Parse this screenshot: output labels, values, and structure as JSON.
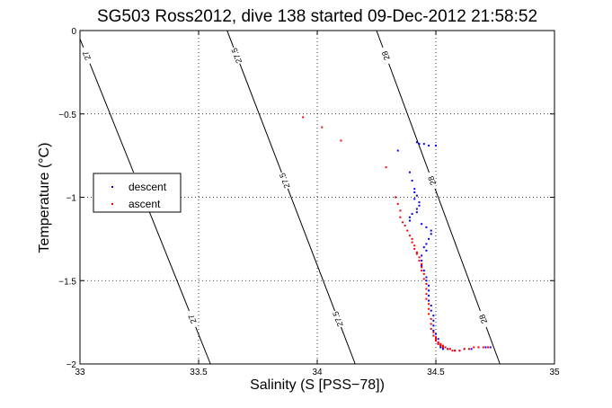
{
  "chart_data": {
    "type": "scatter",
    "title": "SG503 Ross2012, dive 138 started 09-Dec-2012 21:58:52",
    "xlabel": "Salinity (S [PSS−78])",
    "ylabel": "Temperature (°C)",
    "xlim": [
      33,
      35
    ],
    "ylim": [
      -2,
      0
    ],
    "xticks": [
      33,
      33.5,
      34,
      34.5,
      35
    ],
    "xtick_labels": [
      "33",
      "33.5",
      "34",
      "34.5",
      "35"
    ],
    "yticks": [
      0,
      -0.5,
      -1,
      -1.5,
      -2
    ],
    "ytick_labels": [
      "0",
      "−0.5",
      "−1",
      "−1.5",
      "−2"
    ],
    "grid": true,
    "legend_position": "left",
    "density_contours": [
      {
        "value": "27",
        "points": [
          [
            33.0,
            -0.05
          ],
          [
            33.55,
            -2.0
          ]
        ],
        "labels": [
          -0.15,
          -0.9,
          -1.73
        ]
      },
      {
        "value": "27.5",
        "points": [
          [
            33.62,
            0.0
          ],
          [
            34.16,
            -2.0
          ]
        ],
        "labels": [
          -0.15,
          -0.9,
          -1.73
        ]
      },
      {
        "value": "28",
        "points": [
          [
            34.25,
            0.0
          ],
          [
            34.77,
            -2.0
          ]
        ],
        "labels": [
          -0.15,
          -0.9,
          -1.73
        ]
      }
    ],
    "series": [
      {
        "name": "descent",
        "color": "#0000ff",
        "x": [
          34.34,
          34.42,
          34.43,
          34.45,
          34.47,
          34.5,
          34.39,
          34.4,
          34.41,
          34.41,
          34.42,
          34.41,
          34.43,
          34.43,
          34.42,
          34.42,
          34.4,
          34.39,
          34.39,
          34.44,
          34.46,
          34.48,
          34.48,
          34.47,
          34.46,
          34.45,
          34.46,
          34.44,
          34.44,
          34.44,
          34.45,
          34.46,
          34.46,
          34.47,
          34.47,
          34.47,
          34.47,
          34.48,
          34.48,
          34.49,
          34.49,
          34.49,
          34.49,
          34.5,
          34.5,
          34.51,
          34.51,
          34.51,
          34.52,
          34.52,
          34.53,
          34.55,
          34.58,
          34.6,
          34.62,
          34.65,
          34.68,
          34.71,
          34.73
        ],
        "y": [
          -0.72,
          -0.67,
          -0.68,
          -0.68,
          -0.69,
          -0.69,
          -0.85,
          -0.9,
          -0.95,
          -0.97,
          -0.99,
          -1.01,
          -1.03,
          -1.05,
          -1.07,
          -1.09,
          -1.1,
          -1.12,
          -1.14,
          -1.16,
          -1.18,
          -1.2,
          -1.22,
          -1.25,
          -1.28,
          -1.3,
          -1.32,
          -1.35,
          -1.38,
          -1.41,
          -1.44,
          -1.48,
          -1.5,
          -1.53,
          -1.56,
          -1.59,
          -1.62,
          -1.65,
          -1.68,
          -1.71,
          -1.74,
          -1.77,
          -1.8,
          -1.82,
          -1.84,
          -1.85,
          -1.87,
          -1.88,
          -1.89,
          -1.9,
          -1.91,
          -1.91,
          -1.92,
          -1.92,
          -1.91,
          -1.91,
          -1.9,
          -1.9,
          -1.9
        ]
      },
      {
        "name": "ascent",
        "color": "#ff0000",
        "x": [
          33.94,
          34.02,
          34.1,
          34.29,
          34.33,
          34.34,
          34.35,
          34.35,
          34.36,
          34.37,
          34.38,
          34.39,
          34.4,
          34.4,
          34.41,
          34.41,
          34.42,
          34.42,
          34.43,
          34.43,
          34.44,
          34.44,
          34.44,
          34.45,
          34.45,
          34.46,
          34.46,
          34.46,
          34.46,
          34.47,
          34.47,
          34.47,
          34.48,
          34.48,
          34.48,
          34.49,
          34.49,
          34.5,
          34.5,
          34.5,
          34.51,
          34.51,
          34.52,
          34.52,
          34.53,
          34.53,
          34.54,
          34.55,
          34.56,
          34.57,
          34.58,
          34.6,
          34.62,
          34.64,
          34.66,
          34.68,
          34.7,
          34.72
        ],
        "y": [
          -0.52,
          -0.58,
          -0.66,
          -0.82,
          -1.0,
          -1.04,
          -1.08,
          -1.12,
          -1.15,
          -1.17,
          -1.2,
          -1.23,
          -1.25,
          -1.27,
          -1.29,
          -1.31,
          -1.33,
          -1.34,
          -1.36,
          -1.38,
          -1.4,
          -1.42,
          -1.44,
          -1.46,
          -1.49,
          -1.52,
          -1.55,
          -1.58,
          -1.61,
          -1.64,
          -1.67,
          -1.7,
          -1.73,
          -1.76,
          -1.79,
          -1.81,
          -1.83,
          -1.84,
          -1.85,
          -1.86,
          -1.87,
          -1.88,
          -1.88,
          -1.89,
          -1.89,
          -1.9,
          -1.9,
          -1.91,
          -1.91,
          -1.92,
          -1.92,
          -1.92,
          -1.91,
          -1.91,
          -1.9,
          -1.9,
          -1.9,
          -1.9
        ]
      }
    ]
  }
}
